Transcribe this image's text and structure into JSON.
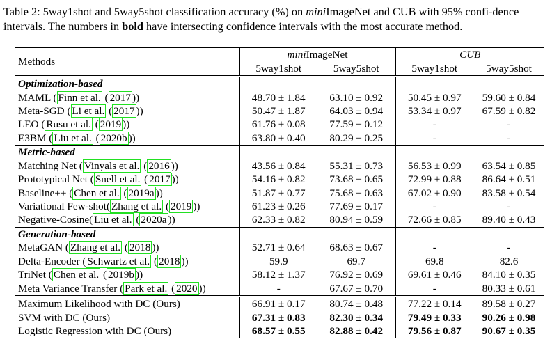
{
  "caption": {
    "prefix": "Table 2: 5way1shot and 5way5shot classification accuracy (%) on ",
    "mini": "mini",
    "mid": "ImageNet and CUB with 95% confi-dence intervals. The numbers in ",
    "bold": "bold",
    "suffix": " have intersecting confidence intervals with the most accurate method."
  },
  "header": {
    "methods": "Methods",
    "group1_italic": "mini",
    "group1_rest": "ImageNet",
    "group2": "CUB",
    "col_labels": [
      "5way1shot",
      "5way5shot",
      "5way1shot",
      "5way5shot"
    ]
  },
  "sections": [
    {
      "title": "Optimization-based",
      "rows": [
        {
          "name": "MAML (",
          "cite_a": "Finn et al.",
          "mid": " (",
          "cite_b": "2017",
          "end": "))",
          "values": [
            "48.70 ± 1.84",
            "63.10 ± 0.92",
            "50.45 ± 0.97",
            "59.60 ± 0.84"
          ]
        },
        {
          "name": "Meta-SGD (",
          "cite_a": "Li et al.",
          "mid": " (",
          "cite_b": "2017",
          "end": "))",
          "values": [
            "50.47 ± 1.87",
            "64.03 ± 0.94",
            "53.34 ± 0.97",
            "67.59 ± 0.82"
          ]
        },
        {
          "name": "LEO (",
          "cite_a": "Rusu et al.",
          "mid": " (",
          "cite_b": "2019",
          "end": "))",
          "values": [
            "61.76 ± 0.08",
            "77.59 ± 0.12",
            "-",
            "-"
          ]
        },
        {
          "name": "E3BM (",
          "cite_a": "Liu et al.",
          "mid": " (",
          "cite_b": "2020b",
          "end": "))",
          "values": [
            "63.80 ± 0.40",
            "80.29 ± 0.25",
            "-",
            "-"
          ]
        }
      ]
    },
    {
      "title": "Metric-based",
      "rows": [
        {
          "name": "Matching Net (",
          "cite_a": "Vinyals et al.",
          "mid": " (",
          "cite_b": "2016",
          "end": "))",
          "values": [
            "43.56 ± 0.84",
            "55.31 ± 0.73",
            "56.53 ± 0.99",
            "63.54 ± 0.85"
          ]
        },
        {
          "name": "Prototypical Net (",
          "cite_a": "Snell et al.",
          "mid": " (",
          "cite_b": "2017",
          "end": "))",
          "values": [
            "54.16 ± 0.82",
            "73.68 ± 0.65",
            "72.99 ± 0.88",
            "86.64 ± 0.51"
          ]
        },
        {
          "name": "Baseline++ (",
          "cite_a": "Chen et al.",
          "mid": " (",
          "cite_b": "2019a",
          "end": "))",
          "values": [
            "51.87 ± 0.77",
            "75.68 ± 0.63",
            "67.02 ± 0.90",
            "83.58 ± 0.54"
          ]
        },
        {
          "name": "Variational Few-shot(",
          "cite_a": "Zhang et al.",
          "mid": " (",
          "cite_b": "2019",
          "end": "))",
          "values": [
            "61.23 ± 0.26",
            "77.69 ± 0.17",
            "-",
            "-"
          ]
        },
        {
          "name": "Negative-Cosine(",
          "cite_a": "Liu et al.",
          "mid": " (",
          "cite_b": "2020a",
          "end": "))",
          "values": [
            "62.33 ± 0.82",
            "80.94 ± 0.59",
            "72.66 ± 0.85",
            "89.40 ± 0.43"
          ]
        }
      ]
    },
    {
      "title": "Generation-based",
      "rows": [
        {
          "name": "MetaGAN (",
          "cite_a": "Zhang et al.",
          "mid": " (",
          "cite_b": "2018",
          "end": "))",
          "values": [
            "52.71 ± 0.64",
            "68.63 ± 0.67",
            "-",
            "-"
          ]
        },
        {
          "name": "Delta-Encoder (",
          "cite_a": "Schwartz et al.",
          "mid": " (",
          "cite_b": "2018",
          "end": "))",
          "values": [
            "59.9",
            "69.7",
            "69.8",
            "82.6"
          ]
        },
        {
          "name": "TriNet (",
          "cite_a": "Chen et al.",
          "mid": " (",
          "cite_b": "2019b",
          "end": "))",
          "values": [
            "58.12 ± 1.37",
            "76.92 ± 0.69",
            "69.61 ± 0.46",
            "84.10 ± 0.35"
          ]
        },
        {
          "name": "Meta Variance Transfer (",
          "cite_a": "Park et al.",
          "mid": " (",
          "cite_b": "2020",
          "end": "))",
          "values": [
            "-",
            "67.67 ± 0.70",
            "-",
            "80.33 ± 0.61"
          ]
        }
      ]
    }
  ],
  "ours": [
    {
      "name": "Maximum Likelihood with DC (Ours)",
      "values": [
        "66.91 ± 0.17",
        "80.74 ± 0.48",
        "77.22 ± 0.14",
        "89.58 ± 0.27"
      ],
      "bold": false
    },
    {
      "name": "SVM with DC (Ours)",
      "values": [
        "67.31 ± 0.83",
        "82.30 ± 0.34",
        "79.49 ± 0.33",
        "90.26 ± 0.98"
      ],
      "bold": true
    },
    {
      "name": "Logistic Regression with DC (Ours)",
      "values": [
        "68.57 ± 0.55",
        "82.88 ± 0.42",
        "79.56 ± 0.87",
        "90.67 ± 0.35"
      ],
      "bold": true
    }
  ],
  "colors": {
    "citation_box": "#22e022"
  }
}
